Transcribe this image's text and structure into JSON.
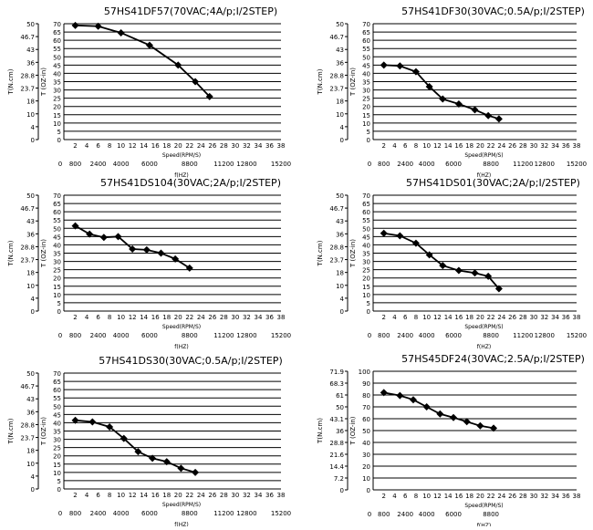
{
  "chart_data": [
    {
      "type": "line",
      "title": "57HS41DF57(70VAC;4A/p;I/2STEP)",
      "ylabel_left": "T(N.cm)",
      "ylabel_right": "T (OZ-in)",
      "xlabel_top": "Speed(RPM/S)",
      "xlabel_bottom": "f(HZ)",
      "left_ticks": [
        "50",
        "46.7",
        "43",
        "36",
        "28.8",
        "23.7",
        "18",
        "10",
        "4",
        "0"
      ],
      "right_ticks": [
        "70",
        "65",
        "60",
        "55",
        "50",
        "45",
        "40",
        "35",
        "30",
        "25",
        "20",
        "15",
        "10",
        "5",
        "0"
      ],
      "x_ticks": [
        "2",
        "4",
        "6",
        "8",
        "10",
        "12",
        "14",
        "16",
        "18",
        "20",
        "22",
        "24",
        "26",
        "28",
        "30",
        "32",
        "34",
        "36",
        "38"
      ],
      "f_ticks": [
        "0",
        "800",
        "2400",
        "4000",
        "6000",
        "8800",
        "11200",
        "12800",
        "15200"
      ],
      "xlim": [
        0,
        38
      ],
      "ylim": [
        0,
        70
      ],
      "x": [
        2,
        6,
        10,
        15,
        20,
        23,
        25.5
      ],
      "y": [
        69,
        68.5,
        64.5,
        57,
        45,
        35,
        26
      ]
    },
    {
      "type": "line",
      "title": "57HS41DF30(30VAC;0.5A/p;I/2STEP)",
      "ylabel_left": "T(N.cm)",
      "ylabel_right": "T (OZ-in)",
      "xlabel_top": "Speed(RPM/S)",
      "xlabel_bottom": "f(HZ)",
      "left_ticks": [
        "50",
        "46.7",
        "43",
        "36",
        "28.8",
        "23.7",
        "18",
        "10",
        "4",
        "0"
      ],
      "right_ticks": [
        "70",
        "65",
        "60",
        "55",
        "50",
        "45",
        "40",
        "35",
        "30",
        "25",
        "20",
        "15",
        "10",
        "5",
        "0"
      ],
      "x_ticks": [
        "2",
        "4",
        "6",
        "8",
        "10",
        "12",
        "14",
        "16",
        "18",
        "20",
        "22",
        "24",
        "26",
        "28",
        "30",
        "32",
        "34",
        "36",
        "38"
      ],
      "f_ticks": [
        "0",
        "800",
        "2400",
        "4000",
        "6000",
        "8800",
        "11200",
        "12800",
        "15200"
      ],
      "xlim": [
        0,
        38
      ],
      "ylim": [
        0,
        70
      ],
      "x": [
        2,
        5,
        8,
        10.5,
        13,
        16,
        19,
        21.5,
        23.5
      ],
      "y": [
        45,
        44.5,
        41,
        32,
        24.5,
        21.5,
        18,
        14.5,
        12.5
      ]
    },
    {
      "type": "line",
      "title": "57HS41DS104(30VAC;2A/p;I/2STEP)",
      "ylabel_left": "T(N.cm)",
      "ylabel_right": "T (OZ-in)",
      "xlabel_top": "Speed(RPM/S)",
      "xlabel_bottom": "f(HZ)",
      "left_ticks": [
        "50",
        "46.7",
        "43",
        "36",
        "28.8",
        "23.7",
        "18",
        "10",
        "4",
        "0"
      ],
      "right_ticks": [
        "70",
        "65",
        "60",
        "55",
        "50",
        "45",
        "40",
        "35",
        "30",
        "25",
        "20",
        "15",
        "10",
        "5",
        "0"
      ],
      "x_ticks": [
        "2",
        "4",
        "6",
        "8",
        "10",
        "12",
        "14",
        "16",
        "18",
        "20",
        "22",
        "24",
        "26",
        "28",
        "30",
        "32",
        "34",
        "36",
        "38"
      ],
      "f_ticks": [
        "0",
        "800",
        "2400",
        "4000",
        "6000",
        "8800",
        "11200",
        "12800",
        "15200"
      ],
      "xlim": [
        0,
        38
      ],
      "ylim": [
        0,
        70
      ],
      "x": [
        2,
        4.5,
        7,
        9.5,
        12,
        14.5,
        17,
        19.5,
        22
      ],
      "y": [
        51.5,
        46.5,
        44.5,
        45,
        37.5,
        37,
        35,
        31.5,
        26
      ]
    },
    {
      "type": "line",
      "title": "57HS41DS01(30VAC;2A/p;I/2STEP)",
      "ylabel_left": "T(N.cm)",
      "ylabel_right": "T (OZ-in)",
      "xlabel_top": "Speed(RPM/S)",
      "xlabel_bottom": "f(HZ)",
      "left_ticks": [
        "50",
        "46.7",
        "43",
        "36",
        "28.8",
        "23.7",
        "18",
        "10",
        "4",
        "0"
      ],
      "right_ticks": [
        "70",
        "65",
        "60",
        "55",
        "50",
        "45",
        "40",
        "35",
        "30",
        "25",
        "20",
        "15",
        "10",
        "5",
        "0"
      ],
      "x_ticks": [
        "2",
        "4",
        "6",
        "8",
        "10",
        "12",
        "14",
        "16",
        "18",
        "20",
        "22",
        "24",
        "26",
        "28",
        "30",
        "32",
        "34",
        "36",
        "38"
      ],
      "f_ticks": [
        "0",
        "800",
        "2400",
        "4000",
        "6000",
        "8800",
        "11200",
        "12800",
        "15200"
      ],
      "xlim": [
        0,
        38
      ],
      "ylim": [
        0,
        70
      ],
      "x": [
        2,
        5,
        8,
        10.5,
        13,
        16,
        19,
        21.5,
        23.5
      ],
      "y": [
        47,
        45.5,
        41,
        34,
        27.5,
        24.5,
        23,
        21,
        13.5
      ]
    },
    {
      "type": "line",
      "title": "57HS41DS30(30VAC;0.5A/p;I/2STEP)",
      "ylabel_left": "T(N.cm)",
      "ylabel_right": "T (OZ-in)",
      "xlabel_top": "Speed(RPM/S)",
      "xlabel_bottom": "f(HZ)",
      "left_ticks": [
        "50",
        "46.7",
        "43",
        "36",
        "28.8",
        "23.7",
        "18",
        "10",
        "4",
        "0"
      ],
      "right_ticks": [
        "70",
        "65",
        "60",
        "55",
        "50",
        "45",
        "40",
        "35",
        "30",
        "25",
        "20",
        "15",
        "10",
        "5",
        "0"
      ],
      "x_ticks": [
        "2",
        "4",
        "6",
        "8",
        "10",
        "12",
        "14",
        "16",
        "18",
        "20",
        "22",
        "24",
        "26",
        "28",
        "30",
        "32",
        "34",
        "36",
        "38"
      ],
      "f_ticks": [
        "0",
        "800",
        "2400",
        "4000",
        "6000",
        "8800",
        "11200",
        "12800",
        "15200"
      ],
      "xlim": [
        0,
        38
      ],
      "ylim": [
        0,
        70
      ],
      "x": [
        2,
        5,
        8,
        10.5,
        13,
        15.5,
        18,
        20.5,
        23
      ],
      "y": [
        41.5,
        40.5,
        37.5,
        30.5,
        22.5,
        18.5,
        16.5,
        12.5,
        10
      ]
    },
    {
      "type": "line",
      "title": "57HS45DF24(30VAC;2.5A/p;I/2STEP)",
      "ylabel_left": "T(N.cm)",
      "ylabel_right": "T (OZ-in)",
      "xlabel_top": "Speed(RPM/S)",
      "xlabel_bottom": "f(HZ)",
      "left_ticks": [
        "71.9",
        "68.3",
        "61",
        "50",
        "43.1",
        "36",
        "28.8",
        "21.6",
        "14.4",
        "7.2",
        "0"
      ],
      "right_ticks": [
        "100",
        "90",
        "80",
        "70",
        "60",
        "50",
        "40",
        "30",
        "20",
        "10",
        "0"
      ],
      "x_ticks": [
        "2",
        "4",
        "6",
        "8",
        "10",
        "12",
        "14",
        "16",
        "18",
        "20",
        "22",
        "24",
        "26",
        "28",
        "30",
        "32",
        "34",
        "36",
        "38"
      ],
      "f_ticks": [
        "0",
        "800",
        "2400",
        "4000",
        "6000",
        "8800"
      ],
      "xlim": [
        0,
        38
      ],
      "ylim": [
        0,
        100
      ],
      "x": [
        2,
        5,
        7.5,
        10,
        12.5,
        15,
        17.5,
        20,
        22.5
      ],
      "y": [
        82,
        79.5,
        76,
        70,
        64,
        61,
        57.5,
        54,
        52
      ]
    }
  ]
}
